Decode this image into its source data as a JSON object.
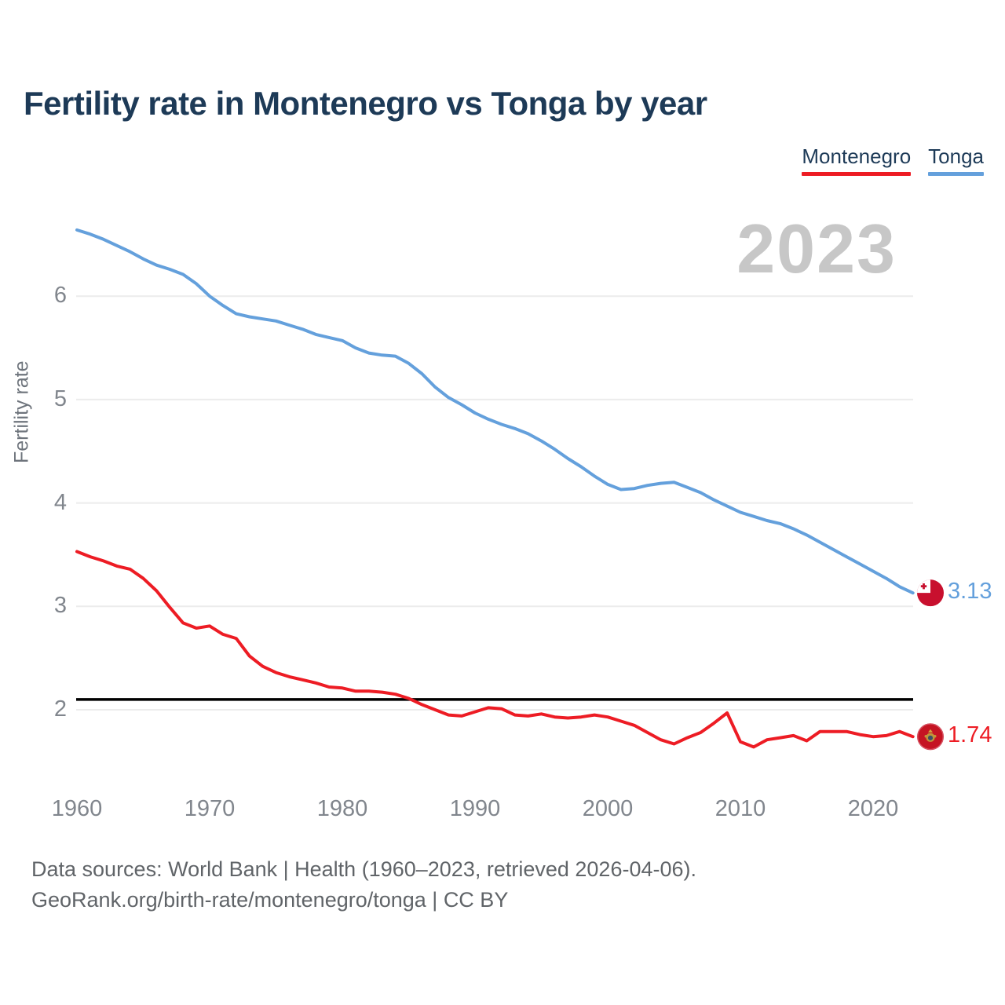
{
  "title": "Fertility rate in Montenegro vs Tonga by year",
  "watermark": "2023",
  "legend": {
    "items": [
      {
        "label": "Montenegro",
        "color": "#ed1c24"
      },
      {
        "label": "Tonga",
        "color": "#64a0dc"
      }
    ]
  },
  "y_axis_title": "Fertility rate",
  "footer": {
    "line1": "Data sources: World Bank | Health (1960–2023, retrieved 2026-04-06).",
    "line2": "GeoRank.org/birth-rate/montenegro/tonga | CC BY"
  },
  "colors": {
    "montenegro": "#ed1c24",
    "tonga": "#64a0dc",
    "reference_line": "#000000",
    "gridline": "#ececec",
    "tick_text": "#81868d",
    "title_text": "#1d3a57",
    "watermark_text": "#c7c7c7",
    "footer_text": "#606468"
  },
  "chart_data": {
    "type": "line",
    "title": "Fertility rate in Montenegro vs Tonga by year",
    "xlabel": "",
    "ylabel": "Fertility rate",
    "grid": true,
    "legend_position": "top-right",
    "xlim": [
      1960,
      2023
    ],
    "ylim": [
      1.4,
      6.9
    ],
    "xticks": [
      1960,
      1970,
      1980,
      1990,
      2000,
      2010,
      2020
    ],
    "yticks": [
      2,
      3,
      4,
      5,
      6
    ],
    "reference_line": {
      "value": 2.1,
      "color": "#000000"
    },
    "x": [
      1960,
      1961,
      1962,
      1963,
      1964,
      1965,
      1966,
      1967,
      1968,
      1969,
      1970,
      1971,
      1972,
      1973,
      1974,
      1975,
      1976,
      1977,
      1978,
      1979,
      1980,
      1981,
      1982,
      1983,
      1984,
      1985,
      1986,
      1987,
      1988,
      1989,
      1990,
      1991,
      1992,
      1993,
      1994,
      1995,
      1996,
      1997,
      1998,
      1999,
      2000,
      2001,
      2002,
      2003,
      2004,
      2005,
      2006,
      2007,
      2008,
      2009,
      2010,
      2011,
      2012,
      2013,
      2014,
      2015,
      2016,
      2017,
      2018,
      2019,
      2020,
      2021,
      2022,
      2023
    ],
    "series": [
      {
        "name": "Montenegro",
        "color": "#ed1c24",
        "end_label": "1.74",
        "end_value": 1.74,
        "values": [
          3.53,
          3.48,
          3.44,
          3.39,
          3.36,
          3.27,
          3.15,
          2.99,
          2.84,
          2.79,
          2.81,
          2.73,
          2.69,
          2.52,
          2.42,
          2.36,
          2.32,
          2.29,
          2.26,
          2.22,
          2.21,
          2.18,
          2.18,
          2.17,
          2.15,
          2.11,
          2.05,
          2.0,
          1.95,
          1.94,
          1.98,
          2.02,
          2.01,
          1.95,
          1.94,
          1.96,
          1.93,
          1.92,
          1.93,
          1.95,
          1.93,
          1.89,
          1.85,
          1.78,
          1.71,
          1.67,
          1.73,
          1.78,
          1.87,
          1.97,
          1.69,
          1.64,
          1.71,
          1.73,
          1.75,
          1.7,
          1.79,
          1.79,
          1.79,
          1.76,
          1.74,
          1.75,
          1.79,
          1.74
        ]
      },
      {
        "name": "Tonga",
        "color": "#64a0dc",
        "end_label": "3.13",
        "end_value": 3.13,
        "values": [
          6.64,
          6.6,
          6.55,
          6.49,
          6.43,
          6.36,
          6.3,
          6.26,
          6.21,
          6.12,
          6.0,
          5.91,
          5.83,
          5.8,
          5.78,
          5.76,
          5.72,
          5.68,
          5.63,
          5.6,
          5.57,
          5.5,
          5.45,
          5.43,
          5.42,
          5.35,
          5.25,
          5.12,
          5.02,
          4.95,
          4.87,
          4.81,
          4.76,
          4.72,
          4.67,
          4.6,
          4.52,
          4.43,
          4.35,
          4.26,
          4.18,
          4.13,
          4.14,
          4.17,
          4.19,
          4.2,
          4.15,
          4.1,
          4.03,
          3.97,
          3.91,
          3.87,
          3.83,
          3.8,
          3.75,
          3.69,
          3.62,
          3.55,
          3.48,
          3.41,
          3.34,
          3.27,
          3.19,
          3.13
        ]
      }
    ]
  }
}
